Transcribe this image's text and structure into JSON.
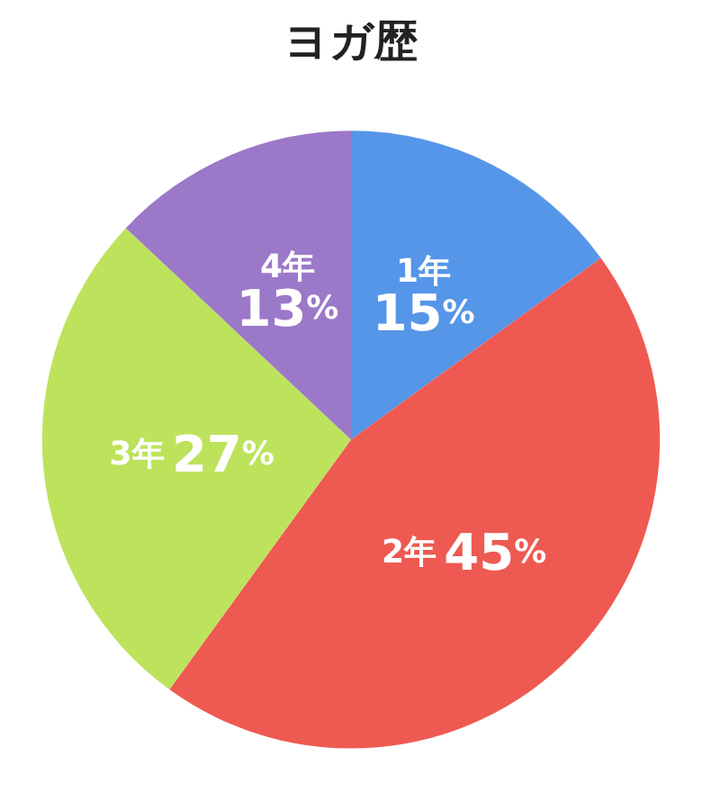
{
  "chart_data": {
    "type": "pie",
    "title": "ヨガ歴",
    "categories": [
      "1年",
      "2年",
      "3年",
      "4年"
    ],
    "values": [
      15,
      45,
      27,
      13
    ],
    "value_labels": [
      "15%",
      "45%",
      "27%",
      "13%"
    ],
    "colors": [
      "#5696e8",
      "#ee5a52",
      "#bde35c",
      "#9c78c8"
    ],
    "legend": false
  }
}
